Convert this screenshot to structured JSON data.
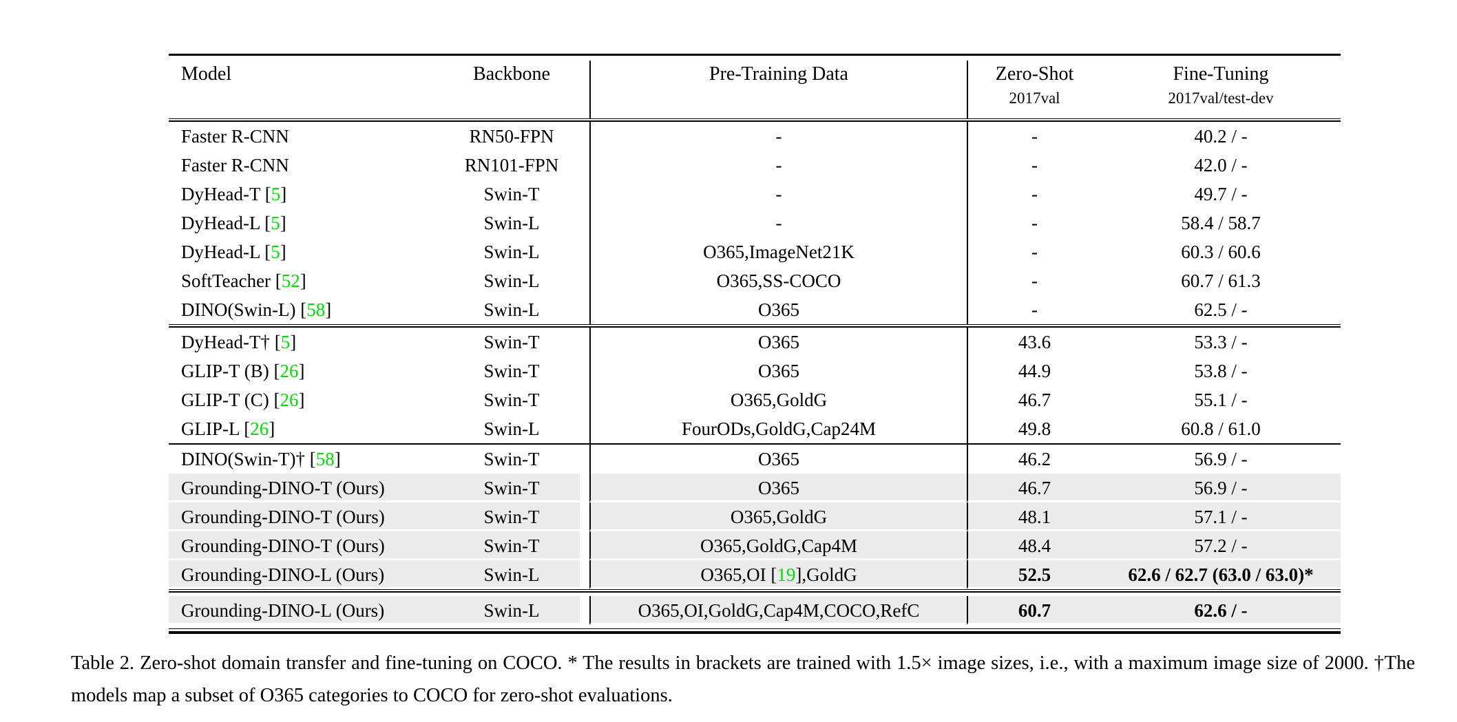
{
  "colors": {
    "citation_green": "#00dc00",
    "row_highlight": "#ebebeb"
  },
  "table": {
    "headers": {
      "model": "Model",
      "backbone": "Backbone",
      "pretrain": "Pre-Training Data",
      "zeroshot_line1": "Zero-Shot",
      "zeroshot_line2": "2017val",
      "finetune_line1": "Fine-Tuning",
      "finetune_line2": "2017val/test-dev"
    },
    "groups": [
      {
        "rows": [
          {
            "model_pre": "Faster R-CNN",
            "model_cite": "",
            "model_post": "",
            "backbone": "RN50-FPN",
            "pt_pre": "-",
            "pt_cite": "",
            "pt_post": "",
            "zs": "-",
            "ft": "40.2 / -",
            "hl": false,
            "bold_zs": false,
            "bold_ft": false
          },
          {
            "model_pre": "Faster R-CNN",
            "model_cite": "",
            "model_post": "",
            "backbone": "RN101-FPN",
            "pt_pre": "-",
            "pt_cite": "",
            "pt_post": "",
            "zs": "-",
            "ft": "42.0 / -",
            "hl": false,
            "bold_zs": false,
            "bold_ft": false
          },
          {
            "model_pre": "DyHead-T [",
            "model_cite": "5",
            "model_post": "]",
            "backbone": "Swin-T",
            "pt_pre": "-",
            "pt_cite": "",
            "pt_post": "",
            "zs": "-",
            "ft": "49.7 / -",
            "hl": false,
            "bold_zs": false,
            "bold_ft": false
          },
          {
            "model_pre": "DyHead-L [",
            "model_cite": "5",
            "model_post": "]",
            "backbone": "Swin-L",
            "pt_pre": "-",
            "pt_cite": "",
            "pt_post": "",
            "zs": "-",
            "ft": "58.4 / 58.7",
            "hl": false,
            "bold_zs": false,
            "bold_ft": false
          },
          {
            "model_pre": "DyHead-L [",
            "model_cite": "5",
            "model_post": "]",
            "backbone": "Swin-L",
            "pt_pre": "O365,ImageNet21K",
            "pt_cite": "",
            "pt_post": "",
            "zs": "-",
            "ft": "60.3 / 60.6",
            "hl": false,
            "bold_zs": false,
            "bold_ft": false
          },
          {
            "model_pre": "SoftTeacher [",
            "model_cite": "52",
            "model_post": "]",
            "backbone": "Swin-L",
            "pt_pre": "O365,SS-COCO",
            "pt_cite": "",
            "pt_post": "",
            "zs": "-",
            "ft": "60.7 / 61.3",
            "hl": false,
            "bold_zs": false,
            "bold_ft": false
          },
          {
            "model_pre": "DINO(Swin-L) [",
            "model_cite": "58",
            "model_post": "]",
            "backbone": "Swin-L",
            "pt_pre": "O365",
            "pt_cite": "",
            "pt_post": "",
            "zs": "-",
            "ft": "62.5 / -",
            "hl": false,
            "bold_zs": false,
            "bold_ft": false
          }
        ]
      },
      {
        "rows": [
          {
            "model_pre": "DyHead-T† [",
            "model_cite": "5",
            "model_post": "]",
            "backbone": "Swin-T",
            "pt_pre": "O365",
            "pt_cite": "",
            "pt_post": "",
            "zs": "43.6",
            "ft": "53.3 / -",
            "hl": false,
            "bold_zs": false,
            "bold_ft": false
          },
          {
            "model_pre": "GLIP-T (B) [",
            "model_cite": "26",
            "model_post": "]",
            "backbone": "Swin-T",
            "pt_pre": "O365",
            "pt_cite": "",
            "pt_post": "",
            "zs": "44.9",
            "ft": "53.8 / -",
            "hl": false,
            "bold_zs": false,
            "bold_ft": false
          },
          {
            "model_pre": "GLIP-T (C) [",
            "model_cite": "26",
            "model_post": "]",
            "backbone": "Swin-T",
            "pt_pre": "O365,GoldG",
            "pt_cite": "",
            "pt_post": "",
            "zs": "46.7",
            "ft": "55.1 / -",
            "hl": false,
            "bold_zs": false,
            "bold_ft": false
          },
          {
            "model_pre": "GLIP-L [",
            "model_cite": "26",
            "model_post": "]",
            "backbone": "Swin-L",
            "pt_pre": "FourODs,GoldG,Cap24M",
            "pt_cite": "",
            "pt_post": "",
            "zs": "49.8",
            "ft": "60.8 / 61.0",
            "hl": false,
            "bold_zs": false,
            "bold_ft": false
          }
        ]
      },
      {
        "rows": [
          {
            "model_pre": "DINO(Swin-T)† [",
            "model_cite": "58",
            "model_post": "]",
            "backbone": "Swin-T",
            "pt_pre": "O365",
            "pt_cite": "",
            "pt_post": "",
            "zs": "46.2",
            "ft": "56.9 / -",
            "hl": false,
            "bold_zs": false,
            "bold_ft": false
          },
          {
            "model_pre": "Grounding-DINO-T (Ours)",
            "model_cite": "",
            "model_post": "",
            "backbone": "Swin-T",
            "pt_pre": "O365",
            "pt_cite": "",
            "pt_post": "",
            "zs": "46.7",
            "ft": "56.9 / -",
            "hl": true,
            "bold_zs": false,
            "bold_ft": false
          },
          {
            "model_pre": "Grounding-DINO-T (Ours)",
            "model_cite": "",
            "model_post": "",
            "backbone": "Swin-T",
            "pt_pre": "O365,GoldG",
            "pt_cite": "",
            "pt_post": "",
            "zs": "48.1",
            "ft": "57.1 / -",
            "hl": true,
            "bold_zs": false,
            "bold_ft": false
          },
          {
            "model_pre": "Grounding-DINO-T (Ours)",
            "model_cite": "",
            "model_post": "",
            "backbone": "Swin-T",
            "pt_pre": "O365,GoldG,Cap4M",
            "pt_cite": "",
            "pt_post": "",
            "zs": "48.4",
            "ft": "57.2 / -",
            "hl": true,
            "bold_zs": false,
            "bold_ft": false
          },
          {
            "model_pre": "Grounding-DINO-L (Ours)",
            "model_cite": "",
            "model_post": "",
            "backbone": "Swin-L",
            "pt_pre": "O365,OI [",
            "pt_cite": "19",
            "pt_post": "],GoldG",
            "zs": "52.5",
            "ft": "62.6 / 62.7 (63.0 / 63.0)*",
            "hl": true,
            "bold_zs": true,
            "bold_ft": true
          }
        ]
      },
      {
        "rows": [
          {
            "model_pre": "Grounding-DINO-L (Ours)",
            "model_cite": "",
            "model_post": "",
            "backbone": "Swin-L",
            "pt_pre": "O365,OI,GoldG,Cap4M,COCO,RefC",
            "pt_cite": "",
            "pt_post": "",
            "zs": "60.7",
            "ft": "62.6 / -",
            "hl": true,
            "bold_zs": true,
            "bold_ft": true
          }
        ]
      }
    ]
  },
  "caption": {
    "text": "Table 2.  Zero-shot domain transfer and fine-tuning on COCO. * The results in brackets are trained with 1.5× image sizes, i.e., with a maximum image size of 2000. †The models map a subset of O365 categories to COCO for zero-shot evaluations."
  }
}
